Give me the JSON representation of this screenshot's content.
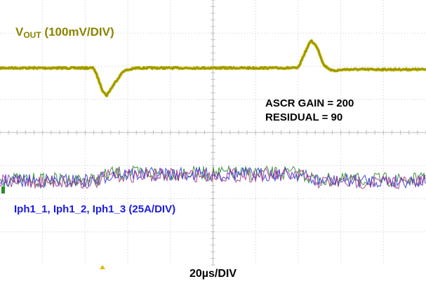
{
  "colors": {
    "vout": "#b8b000",
    "vout_label": "#8a8500",
    "current_label": "#1a1ae0",
    "grid": "#c8c8c8",
    "phase_colors": [
      "#2e8b2e",
      "#3a3ad8",
      "#a03a8a"
    ]
  },
  "annotations": {
    "vout_name": "V",
    "vout_sub": "OUT",
    "vout_scale": " (100mV/DIV)",
    "ascr_gain": "ASCR GAIN = 200",
    "residual": "RESIDUAL = 90",
    "current_label": "Iph1_1, Iph1_2, Iph1_3 (25A/DIV)",
    "timebase": "20µs/DIV"
  },
  "chart_data": {
    "type": "line",
    "title": "",
    "xlabel": "20µs/DIV",
    "grid": true,
    "x_divisions": 10,
    "y_divisions": 8,
    "xlim": [
      0,
      10
    ],
    "series": [
      {
        "name": "VOUT (100mV/DIV)",
        "unit_divisions": true,
        "x": [
          0,
          2.2,
          2.3,
          2.4,
          2.5,
          2.7,
          2.9,
          3.2,
          7.0,
          7.15,
          7.3,
          7.45,
          7.6,
          7.8,
          8.1,
          10
        ],
        "y": [
          0,
          0,
          -0.35,
          -0.75,
          -0.95,
          -0.5,
          -0.1,
          0,
          0,
          0.5,
          0.95,
          0.7,
          0.1,
          -0.1,
          -0.05,
          -0.05
        ]
      },
      {
        "name": "Iph1_1, Iph1_2, Iph1_3 (25A/DIV)",
        "unit_divisions": true,
        "x": [
          0,
          2.25,
          2.6,
          7.0,
          7.45,
          10
        ],
        "y": [
          0,
          0,
          0.4,
          0.4,
          0,
          0
        ]
      }
    ]
  }
}
